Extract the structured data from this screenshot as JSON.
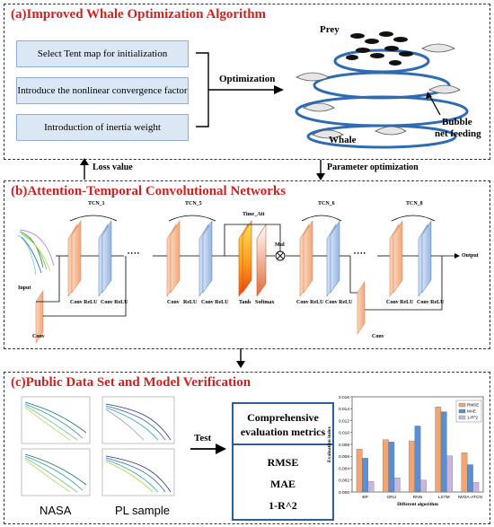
{
  "panel_a": {
    "title": "(a)Improved Whale Optimization Algorithm",
    "steps": [
      "Select Tent map for initialization",
      "Introduce the nonlinear convergence factor",
      "Introduction of inertia weight"
    ],
    "optimization_label": "Optimization",
    "prey_label": "Prey",
    "whale_label": "Whale",
    "bubble_label_1": "Bubble",
    "bubble_label_2": "net feeding"
  },
  "links": {
    "loss_value": "Loss value",
    "parameter_optimization": "Parameter optimization"
  },
  "panel_b": {
    "title": "(b)Attention-Temporal Convolutional Networks",
    "tcn_labels": [
      "TCN_1",
      "TCN_5",
      "Time_Att",
      "TCN_6",
      "TCN_8"
    ],
    "layer_labels": {
      "conv_relu_1": "Conv ReLU",
      "conv_relu_2": "Conv ReLU",
      "conv_relu_3": "Conv",
      "conv_relu_4": "ReLU",
      "conv_relu_5": "Conv ReLU",
      "tanh": "Tanh",
      "softmax": "Softmax",
      "conv_relu_6": "Conv ReLU",
      "conv_relu_7": "Conv ReLU",
      "conv_relu_8": "Conv ReLU",
      "conv_relu_9": "Conv ReLU"
    },
    "input_label": "Input",
    "output_label": "Output",
    "mul_label": "Mul",
    "conv_side_1": "Conv",
    "conv_side_2": "Conv",
    "dots": "• • • •"
  },
  "panel_c": {
    "title": "(c)Public Data Set and Model Verification",
    "dataset_labels": [
      "NASA",
      "PL sample"
    ],
    "test_label": "Test",
    "metrics_title_1": "Comprehensive",
    "metrics_title_2": "evaluation metrics",
    "metrics": [
      "RMSE",
      "MAE",
      "1-R^2"
    ]
  },
  "chart_data": {
    "type": "bar",
    "categories": [
      "BP",
      "GRU",
      "RNN",
      "LSTM",
      "IWOA-ATCN"
    ],
    "series": [
      {
        "name": "RMSE",
        "values": [
          0.0072,
          0.0088,
          0.0086,
          0.0143,
          0.0066
        ]
      },
      {
        "name": "MAE",
        "values": [
          0.0057,
          0.0084,
          0.0111,
          0.0135,
          0.0046
        ]
      },
      {
        "name": "1-R^2",
        "values": [
          0.0018,
          0.0024,
          0.002,
          0.0061,
          0.0016
        ]
      }
    ],
    "xlabel": "Different algorithm",
    "ylabel": "Evaluation index",
    "ylim": [
      0,
      0.016
    ],
    "yticks": [
      "0.000",
      "0.002",
      "0.004",
      "0.006",
      "0.008",
      "0.010",
      "0.012",
      "0.014",
      "0.016"
    ],
    "legend": "top-right",
    "colors": [
      "#f4a46f",
      "#5b8fd3",
      "#c9b6dc"
    ]
  }
}
